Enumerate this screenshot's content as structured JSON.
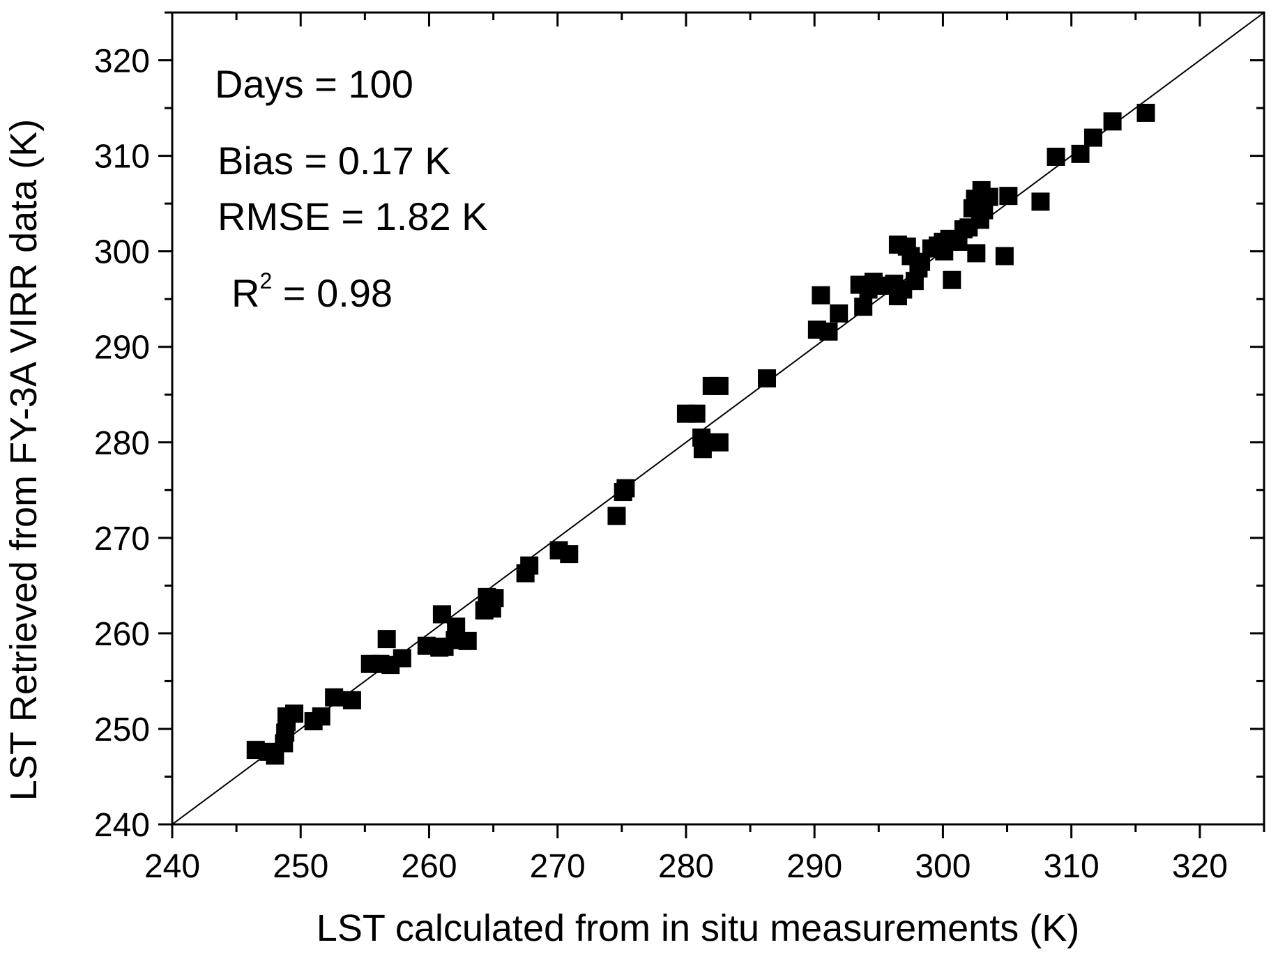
{
  "chart_data": {
    "type": "scatter",
    "title": "",
    "xlabel": "LST calculated from in situ measurements  (K)",
    "ylabel": "LST Retrieved from FY-3A VIRR data (K)",
    "xlim": [
      240,
      325
    ],
    "ylim": [
      240,
      325
    ],
    "xticks": [
      240,
      250,
      260,
      270,
      280,
      290,
      300,
      310,
      320
    ],
    "yticks": [
      240,
      250,
      260,
      270,
      280,
      290,
      300,
      310,
      320
    ],
    "minor_tick_step": 5,
    "reference_line": {
      "name": "1:1 line",
      "from": [
        240,
        240
      ],
      "to": [
        325,
        325
      ]
    },
    "annotations": {
      "days": "Days = 100",
      "bias": "Bias = 0.17 K",
      "rmse": "RMSE = 1.82 K",
      "r2_prefix": "R",
      "r2_sup": "2",
      "r2_value": " = 0.98"
    },
    "marker": {
      "shape": "square",
      "color": "#000000"
    },
    "series": [
      {
        "name": "LST",
        "points": [
          [
            246.5,
            247.8
          ],
          [
            247.5,
            247.6
          ],
          [
            248.0,
            247.2
          ],
          [
            248.7,
            248.5
          ],
          [
            248.8,
            249.6
          ],
          [
            248.9,
            250.7
          ],
          [
            248.9,
            251.3
          ],
          [
            249.5,
            251.6
          ],
          [
            251.0,
            250.8
          ],
          [
            251.6,
            251.3
          ],
          [
            252.6,
            253.3
          ],
          [
            254.0,
            253.0
          ],
          [
            255.4,
            256.8
          ],
          [
            256.2,
            256.8
          ],
          [
            256.7,
            259.4
          ],
          [
            257.0,
            256.7
          ],
          [
            257.9,
            257.4
          ],
          [
            259.8,
            258.7
          ],
          [
            260.8,
            258.5
          ],
          [
            261.0,
            262.0
          ],
          [
            261.2,
            258.6
          ],
          [
            262.0,
            259.3
          ],
          [
            262.1,
            260.7
          ],
          [
            263.0,
            259.2
          ],
          [
            264.3,
            262.4
          ],
          [
            264.5,
            263.8
          ],
          [
            264.9,
            262.6
          ],
          [
            265.1,
            263.7
          ],
          [
            267.5,
            266.3
          ],
          [
            267.8,
            267.1
          ],
          [
            270.1,
            268.7
          ],
          [
            270.9,
            268.3
          ],
          [
            274.6,
            272.3
          ],
          [
            275.1,
            274.8
          ],
          [
            275.3,
            275.2
          ],
          [
            280.0,
            283.0
          ],
          [
            280.8,
            283.0
          ],
          [
            281.2,
            280.5
          ],
          [
            281.3,
            279.3
          ],
          [
            282.0,
            285.9
          ],
          [
            282.6,
            285.9
          ],
          [
            282.6,
            280.0
          ],
          [
            286.3,
            286.7
          ],
          [
            290.2,
            291.8
          ],
          [
            290.5,
            295.4
          ],
          [
            291.1,
            291.6
          ],
          [
            291.9,
            293.5
          ],
          [
            293.5,
            296.5
          ],
          [
            293.8,
            294.2
          ],
          [
            294.2,
            296.0
          ],
          [
            294.6,
            296.8
          ],
          [
            295.1,
            296.4
          ],
          [
            296.2,
            296.6
          ],
          [
            296.5,
            295.3
          ],
          [
            296.5,
            300.7
          ],
          [
            296.9,
            296.0
          ],
          [
            297.2,
            300.5
          ],
          [
            297.5,
            299.5
          ],
          [
            297.8,
            296.9
          ],
          [
            298.1,
            298.2
          ],
          [
            298.3,
            298.9
          ],
          [
            299.1,
            300.3
          ],
          [
            299.6,
            300.6
          ],
          [
            300.0,
            301.0
          ],
          [
            300.1,
            300.0
          ],
          [
            300.5,
            301.3
          ],
          [
            300.7,
            297.0
          ],
          [
            301.2,
            301.0
          ],
          [
            301.6,
            302.3
          ],
          [
            302.0,
            302.5
          ],
          [
            302.3,
            304.5
          ],
          [
            302.5,
            305.5
          ],
          [
            302.6,
            299.8
          ],
          [
            302.9,
            303.3
          ],
          [
            303.0,
            306.4
          ],
          [
            303.2,
            304.3
          ],
          [
            303.6,
            305.7
          ],
          [
            304.8,
            299.5
          ],
          [
            305.1,
            305.8
          ],
          [
            307.6,
            305.2
          ],
          [
            308.8,
            309.9
          ],
          [
            310.7,
            310.2
          ],
          [
            311.7,
            311.9
          ],
          [
            313.2,
            313.6
          ],
          [
            315.8,
            314.5
          ]
        ]
      }
    ]
  }
}
